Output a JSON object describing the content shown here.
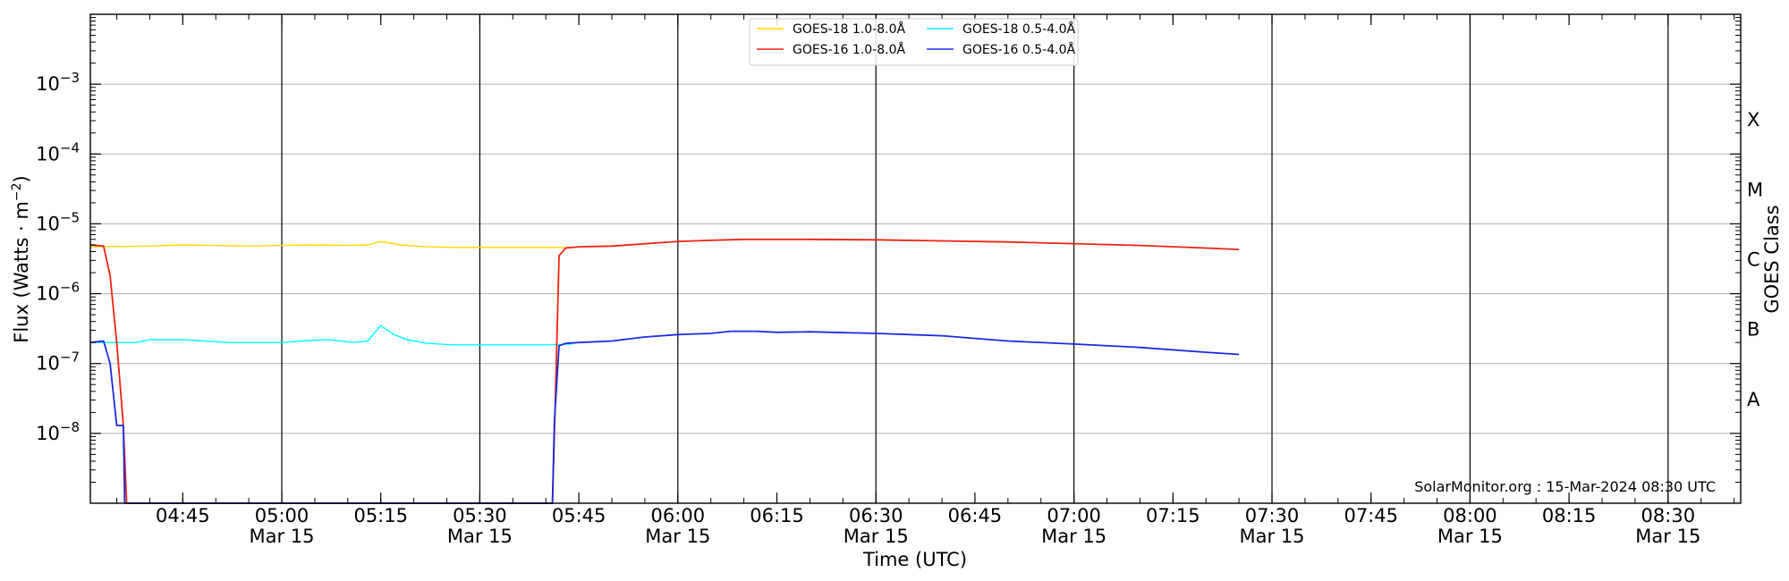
{
  "chart_data": {
    "type": "line",
    "xlabel": "Time (UTC)",
    "ylabel": "Flux (Watts · m",
    "ylabel_sup": "−2",
    "ylabel_end": ")",
    "right_label": "GOES Class",
    "y_scale": "log",
    "ylim": [
      1e-09,
      0.01
    ],
    "xlim": [
      "04:31",
      "08:41"
    ],
    "grid": {
      "horizontal": true,
      "vertical_major": true
    },
    "y_ticks": [
      {
        "value": 1e-08,
        "base": "10",
        "exp": "−8"
      },
      {
        "value": 1e-07,
        "base": "10",
        "exp": "−7"
      },
      {
        "value": 1e-06,
        "base": "10",
        "exp": "−6"
      },
      {
        "value": 1e-05,
        "base": "10",
        "exp": "−5"
      },
      {
        "value": 0.0001,
        "base": "10",
        "exp": "−4"
      },
      {
        "value": 0.001,
        "base": "10",
        "exp": "−3"
      }
    ],
    "x_ticks": [
      {
        "time": "04:45",
        "label": "04:45",
        "date": ""
      },
      {
        "time": "05:00",
        "label": "05:00",
        "date": "Mar 15"
      },
      {
        "time": "05:15",
        "label": "05:15",
        "date": ""
      },
      {
        "time": "05:30",
        "label": "05:30",
        "date": "Mar 15"
      },
      {
        "time": "05:45",
        "label": "05:45",
        "date": ""
      },
      {
        "time": "06:00",
        "label": "06:00",
        "date": "Mar 15"
      },
      {
        "time": "06:15",
        "label": "06:15",
        "date": ""
      },
      {
        "time": "06:30",
        "label": "06:30",
        "date": "Mar 15"
      },
      {
        "time": "06:45",
        "label": "06:45",
        "date": ""
      },
      {
        "time": "07:00",
        "label": "07:00",
        "date": "Mar 15"
      },
      {
        "time": "07:15",
        "label": "07:15",
        "date": ""
      },
      {
        "time": "07:30",
        "label": "07:30",
        "date": "Mar 15"
      },
      {
        "time": "07:45",
        "label": "07:45",
        "date": ""
      },
      {
        "time": "08:00",
        "label": "08:00",
        "date": "Mar 15"
      },
      {
        "time": "08:15",
        "label": "08:15",
        "date": ""
      },
      {
        "time": "08:30",
        "label": "08:30",
        "date": "Mar 15"
      }
    ],
    "goes_classes": [
      {
        "label": "A",
        "value": 3.16e-08
      },
      {
        "label": "B",
        "value": 3.16e-07
      },
      {
        "label": "C",
        "value": 3.16e-06
      },
      {
        "label": "M",
        "value": 3.16e-05
      },
      {
        "label": "X",
        "value": 0.000316
      }
    ],
    "legend": {
      "placement": "top-center",
      "columns": [
        [
          "GOES-18 1.0-8.0Å",
          "GOES-16 1.0-8.0Å"
        ],
        [
          "GOES-18 0.5-4.0Å",
          "GOES-16 0.5-4.0Å"
        ]
      ]
    },
    "series": [
      {
        "name": "GOES-18 1.0-8.0Å",
        "color": "#ffd700",
        "width": 1.4,
        "points": [
          [
            "04:31",
            4.7e-06
          ],
          [
            "04:40",
            4.8e-06
          ],
          [
            "04:45",
            5e-06
          ],
          [
            "04:55",
            4.8e-06
          ],
          [
            "05:00",
            4.9e-06
          ],
          [
            "05:05",
            5e-06
          ],
          [
            "05:10",
            4.9e-06
          ],
          [
            "05:13",
            5e-06
          ],
          [
            "05:15",
            5.6e-06
          ],
          [
            "05:18",
            5e-06
          ],
          [
            "05:22",
            4.7e-06
          ],
          [
            "05:26",
            4.6e-06
          ],
          [
            "05:30",
            4.6e-06
          ],
          [
            "05:40",
            4.6e-06
          ],
          [
            "05:44",
            4.6e-06
          ]
        ]
      },
      {
        "name": "GOES-18 0.5-4.0Å",
        "color": "#00ffff",
        "width": 1.4,
        "points": [
          [
            "04:31",
            2e-07
          ],
          [
            "04:38",
            2e-07
          ],
          [
            "04:40",
            2.2e-07
          ],
          [
            "04:45",
            2.2e-07
          ],
          [
            "04:52",
            2e-07
          ],
          [
            "05:00",
            2e-07
          ],
          [
            "05:03",
            2.1e-07
          ],
          [
            "05:07",
            2.2e-07
          ],
          [
            "05:11",
            2e-07
          ],
          [
            "05:13",
            2.1e-07
          ],
          [
            "05:15",
            3.5e-07
          ],
          [
            "05:17",
            2.6e-07
          ],
          [
            "05:19",
            2.2e-07
          ],
          [
            "05:22",
            1.95e-07
          ],
          [
            "05:26",
            1.85e-07
          ],
          [
            "05:30",
            1.85e-07
          ],
          [
            "05:40",
            1.85e-07
          ],
          [
            "05:44",
            1.9e-07
          ]
        ]
      },
      {
        "name": "GOES-16 1.0-8.0Å",
        "color": "#ee2211",
        "width": 1.8,
        "points": [
          [
            "04:31",
            5e-06
          ],
          [
            "04:33",
            4.8e-06
          ],
          [
            "04:34",
            1.8e-06
          ],
          [
            "04:35",
            2e-07
          ],
          [
            "04:36",
            1.3e-08
          ],
          [
            "04:36.5",
            1e-09
          ],
          [
            "05:41",
            1e-09
          ],
          [
            "05:41.5",
            5e-08
          ],
          [
            "05:42",
            3.5e-06
          ],
          [
            "05:43",
            4.5e-06
          ],
          [
            "05:45",
            4.7e-06
          ],
          [
            "05:50",
            4.8e-06
          ],
          [
            "06:00",
            5.6e-06
          ],
          [
            "06:05",
            5.8e-06
          ],
          [
            "06:10",
            6e-06
          ],
          [
            "06:20",
            6e-06
          ],
          [
            "06:30",
            5.9e-06
          ],
          [
            "06:40",
            5.7e-06
          ],
          [
            "06:50",
            5.5e-06
          ],
          [
            "07:00",
            5.2e-06
          ],
          [
            "07:10",
            4.9e-06
          ],
          [
            "07:20",
            4.5e-06
          ],
          [
            "07:25",
            4.3e-06
          ]
        ]
      },
      {
        "name": "GOES-16 0.5-4.0Å",
        "color": "#1a2be0",
        "width": 1.8,
        "points": [
          [
            "04:31",
            2e-07
          ],
          [
            "04:33",
            2.1e-07
          ],
          [
            "04:34",
            1e-07
          ],
          [
            "04:35",
            1.3e-08
          ],
          [
            "04:36",
            1.3e-08
          ],
          [
            "04:36.2",
            1e-09
          ],
          [
            "05:41",
            1e-09
          ],
          [
            "05:41.3",
            1.5e-08
          ],
          [
            "05:42",
            1.8e-07
          ],
          [
            "05:43",
            1.95e-07
          ],
          [
            "05:45",
            2e-07
          ],
          [
            "05:50",
            2.1e-07
          ],
          [
            "05:55",
            2.4e-07
          ],
          [
            "06:00",
            2.6e-07
          ],
          [
            "06:05",
            2.7e-07
          ],
          [
            "06:08",
            2.9e-07
          ],
          [
            "06:12",
            2.9e-07
          ],
          [
            "06:15",
            2.8e-07
          ],
          [
            "06:20",
            2.85e-07
          ],
          [
            "06:30",
            2.7e-07
          ],
          [
            "06:40",
            2.5e-07
          ],
          [
            "06:50",
            2.1e-07
          ],
          [
            "07:00",
            1.9e-07
          ],
          [
            "07:10",
            1.7e-07
          ],
          [
            "07:20",
            1.45e-07
          ],
          [
            "07:25",
            1.35e-07
          ]
        ]
      }
    ],
    "credit": "SolarMonitor.org : 15-Mar-2024 08:30 UTC"
  }
}
